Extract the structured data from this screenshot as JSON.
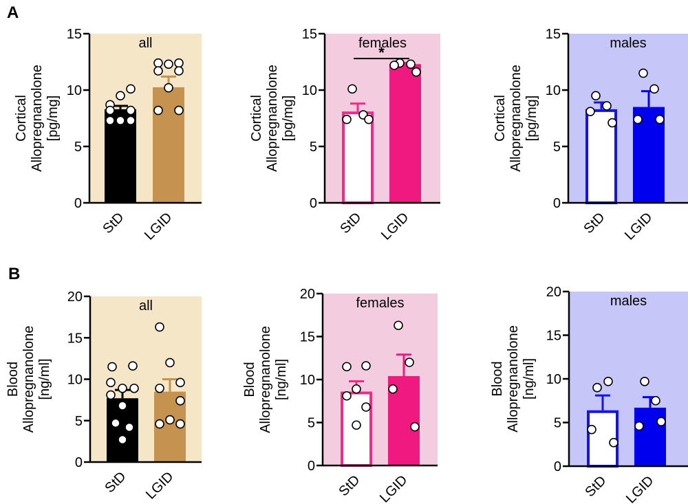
{
  "figure": {
    "panel_letters": [
      "A",
      "B"
    ]
  },
  "chart_data": [
    {
      "type": "bar",
      "panel": "A",
      "title": "all",
      "ylabel_lines": [
        "Cortical",
        "Allopregnanolone",
        "[pg/mg]"
      ],
      "ylim": [
        0,
        15
      ],
      "yticks": [
        0,
        5,
        10,
        15
      ],
      "categories": [
        "StD",
        "LGID"
      ],
      "means": [
        8.3,
        10.25
      ],
      "sem_top": [
        8.6,
        11.2
      ],
      "points": [
        [
          8.7,
          9.5,
          10.1,
          8.2,
          8.2,
          7.3,
          7.3,
          7.3
        ],
        [
          12.4,
          12.3,
          12.4,
          11.7,
          11.7,
          10.2,
          8.2,
          8.2
        ]
      ],
      "colors": {
        "background": "#f6e6c8",
        "bar_fill": [
          "#000000",
          "#c59250"
        ],
        "bar_stroke": [
          "#000000",
          "#c59250"
        ],
        "errorbar": [
          "#000000",
          "#c59250"
        ]
      },
      "significance": null,
      "grid": false,
      "legend": "none"
    },
    {
      "type": "bar",
      "panel": "A",
      "title": "females",
      "ylabel_lines": [
        "Cortical",
        "Allopregnanolone",
        "[pg/mg]"
      ],
      "ylim": [
        0,
        15
      ],
      "yticks": [
        0,
        5,
        10,
        15
      ],
      "categories": [
        "StD",
        "LGID"
      ],
      "means": [
        8.1,
        12.3
      ],
      "sem_top": [
        8.8,
        12.4
      ],
      "points": [
        [
          10.1,
          7.8,
          7.4,
          7.4
        ],
        [
          12.4,
          12.3,
          12.2,
          11.6
        ]
      ],
      "colors": {
        "background": "#f4cce0",
        "bar_fill": [
          "#ffffff",
          "#f0197f"
        ],
        "bar_stroke": [
          "#ef2a88",
          "#f0197f"
        ],
        "errorbar": [
          "#ef2a88",
          "#f0197f"
        ]
      },
      "significance": {
        "label": "*",
        "between": [
          "StD",
          "LGID"
        ],
        "y": 12.8
      },
      "grid": false,
      "legend": "none"
    },
    {
      "type": "bar",
      "panel": "A",
      "title": "males",
      "ylabel_lines": [
        "Cortical",
        "Allopregnanolone",
        "[pg/mg]"
      ],
      "ylim": [
        0,
        15
      ],
      "yticks": [
        0,
        5,
        10,
        15
      ],
      "categories": [
        "StD",
        "LGID"
      ],
      "means": [
        8.3,
        8.5
      ],
      "sem_top": [
        8.9,
        9.9
      ],
      "points": [
        [
          9.5,
          8.6,
          8.1,
          7.1
        ],
        [
          11.5,
          10.1,
          7.4,
          7.4
        ]
      ],
      "colors": {
        "background": "#c6c6f8",
        "bar_fill": [
          "#ffffff",
          "#0000ee"
        ],
        "bar_stroke": [
          "#1414e6",
          "#0000ee"
        ],
        "errorbar": [
          "#1414e6",
          "#0000ee"
        ]
      },
      "significance": null,
      "grid": false,
      "legend": "none"
    },
    {
      "type": "bar",
      "panel": "B",
      "title": "all",
      "ylabel_lines": [
        "Blood",
        "Allopregnanolone",
        "[ng/ml]"
      ],
      "ylim": [
        0,
        20
      ],
      "yticks": [
        0,
        5,
        10,
        15,
        20
      ],
      "categories": [
        "StD",
        "LGID"
      ],
      "means": [
        7.7,
        8.5
      ],
      "sem_top": [
        8.7,
        10.0
      ],
      "points": [
        [
          11.5,
          11.6,
          9.6,
          8.9,
          8.9,
          8.1,
          6.8,
          4.7,
          4.2,
          2.7
        ],
        [
          16.3,
          12.0,
          9.6,
          8.9,
          7.4,
          5.1,
          4.6,
          4.6
        ]
      ],
      "colors": {
        "background": "#f6e6c8",
        "bar_fill": [
          "#000000",
          "#c59250"
        ],
        "bar_stroke": [
          "#000000",
          "#c59250"
        ],
        "errorbar": [
          "#000000",
          "#c59250"
        ]
      },
      "significance": null,
      "grid": false,
      "legend": "none"
    },
    {
      "type": "bar",
      "panel": "B",
      "title": "females",
      "ylabel_lines": [
        "Blood",
        "Allopregnanolone",
        "[ng/ml]"
      ],
      "ylim": [
        0,
        20
      ],
      "yticks": [
        0,
        5,
        10,
        15,
        20
      ],
      "categories": [
        "StD",
        "LGID"
      ],
      "means": [
        8.6,
        10.4
      ],
      "sem_top": [
        9.8,
        12.9
      ],
      "points": [
        [
          11.5,
          11.6,
          8.9,
          8.1,
          6.8,
          4.7
        ],
        [
          16.3,
          12.0,
          8.9,
          4.5
        ]
      ],
      "colors": {
        "background": "#f4cce0",
        "bar_fill": [
          "#ffffff",
          "#f0197f"
        ],
        "bar_stroke": [
          "#ef2a88",
          "#f0197f"
        ],
        "errorbar": [
          "#ef2a88",
          "#f0197f"
        ]
      },
      "significance": null,
      "grid": false,
      "legend": "none"
    },
    {
      "type": "bar",
      "panel": "B",
      "title": "males",
      "ylabel_lines": [
        "Blood",
        "Allopregnanolone",
        "[ng/ml]"
      ],
      "ylim": [
        0,
        20
      ],
      "yticks": [
        0,
        5,
        10,
        15,
        20
      ],
      "categories": [
        "StD",
        "LGID"
      ],
      "means": [
        6.4,
        6.7
      ],
      "sem_top": [
        8.1,
        7.9
      ],
      "points": [
        [
          9.0,
          9.7,
          4.2,
          2.7
        ],
        [
          9.7,
          7.5,
          4.6,
          5.1
        ]
      ],
      "colors": {
        "background": "#c6c6f8",
        "bar_fill": [
          "#ffffff",
          "#0000ee"
        ],
        "bar_stroke": [
          "#1414e6",
          "#0000ee"
        ],
        "errorbar": [
          "#1414e6",
          "#0000ee"
        ]
      },
      "significance": null,
      "grid": false,
      "legend": "none"
    }
  ]
}
